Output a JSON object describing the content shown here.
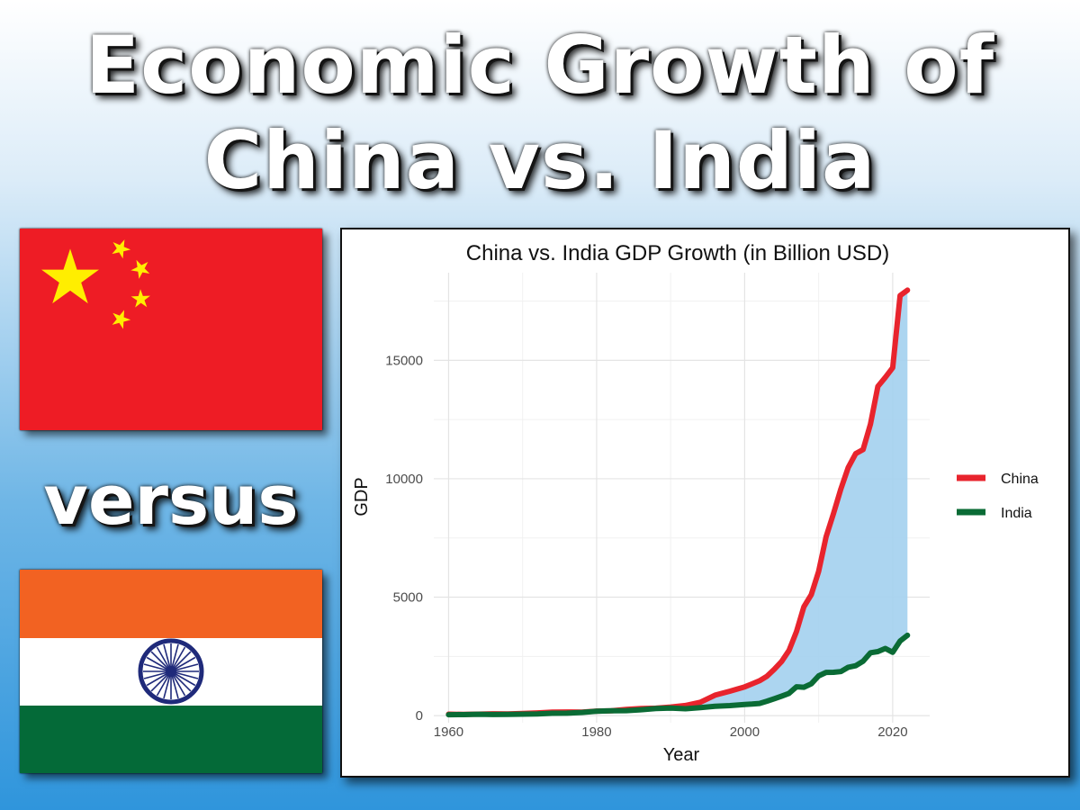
{
  "headline": {
    "line1": "Economic Growth of",
    "line2": "China vs. India"
  },
  "versus": "versus",
  "flags": {
    "china": "china-flag",
    "india": "india-flag"
  },
  "colors": {
    "china": "#e8242d",
    "india": "#0a6b35",
    "gap_fill": "#a3d0ee",
    "saffron": "#f26222",
    "india_green": "#046a38",
    "chakra": "#1f2a7a",
    "china_red": "#ee1c25",
    "china_star": "#ffee00"
  },
  "chart_data": {
    "type": "line",
    "title": "China vs. India GDP Growth (in Billion USD)",
    "xlabel": "Year",
    "ylabel": "GDP",
    "xlim": [
      1958,
      2025
    ],
    "ylim": [
      -300,
      18700
    ],
    "xticks": [
      1960,
      1980,
      2000,
      2020
    ],
    "yticks": [
      0,
      5000,
      10000,
      15000
    ],
    "grid": true,
    "legend_position": "right",
    "shaded_between_series": true,
    "series": [
      {
        "name": "China",
        "x": [
          1960,
          1962,
          1964,
          1966,
          1968,
          1970,
          1972,
          1974,
          1976,
          1978,
          1980,
          1982,
          1984,
          1986,
          1988,
          1990,
          1992,
          1994,
          1996,
          1998,
          2000,
          2001,
          2002,
          2003,
          2004,
          2005,
          2006,
          2007,
          2008,
          2009,
          2010,
          2011,
          2012,
          2013,
          2014,
          2015,
          2016,
          2017,
          2018,
          2019,
          2020,
          2021,
          2022
        ],
        "values": [
          60,
          48,
          60,
          75,
          71,
          93,
          114,
          144,
          154,
          150,
          191,
          205,
          260,
          300,
          312,
          361,
          427,
          564,
          864,
          1029,
          1211,
          1339,
          1471,
          1660,
          1955,
          2286,
          2752,
          3550,
          4594,
          5102,
          6087,
          7552,
          8532,
          9570,
          10475,
          11062,
          11233,
          12310,
          13895,
          14280,
          14688,
          17734,
          17963
        ]
      },
      {
        "name": "India",
        "x": [
          1960,
          1962,
          1964,
          1966,
          1968,
          1970,
          1972,
          1974,
          1976,
          1978,
          1980,
          1982,
          1984,
          1986,
          1988,
          1990,
          1992,
          1994,
          1996,
          1998,
          2000,
          2001,
          2002,
          2003,
          2004,
          2005,
          2006,
          2007,
          2008,
          2009,
          2010,
          2011,
          2012,
          2013,
          2014,
          2015,
          2016,
          2017,
          2018,
          2019,
          2020,
          2021,
          2022
        ],
        "values": [
          37,
          42,
          56,
          46,
          53,
          62,
          71,
          99,
          103,
          135,
          186,
          201,
          209,
          249,
          296,
          321,
          288,
          333,
          393,
          421,
          468,
          485,
          515,
          607,
          709,
          820,
          940,
          1217,
          1199,
          1342,
          1676,
          1823,
          1828,
          1857,
          2039,
          2104,
          2295,
          2651,
          2702,
          2835,
          2671,
          3150,
          3390
        ]
      }
    ]
  }
}
